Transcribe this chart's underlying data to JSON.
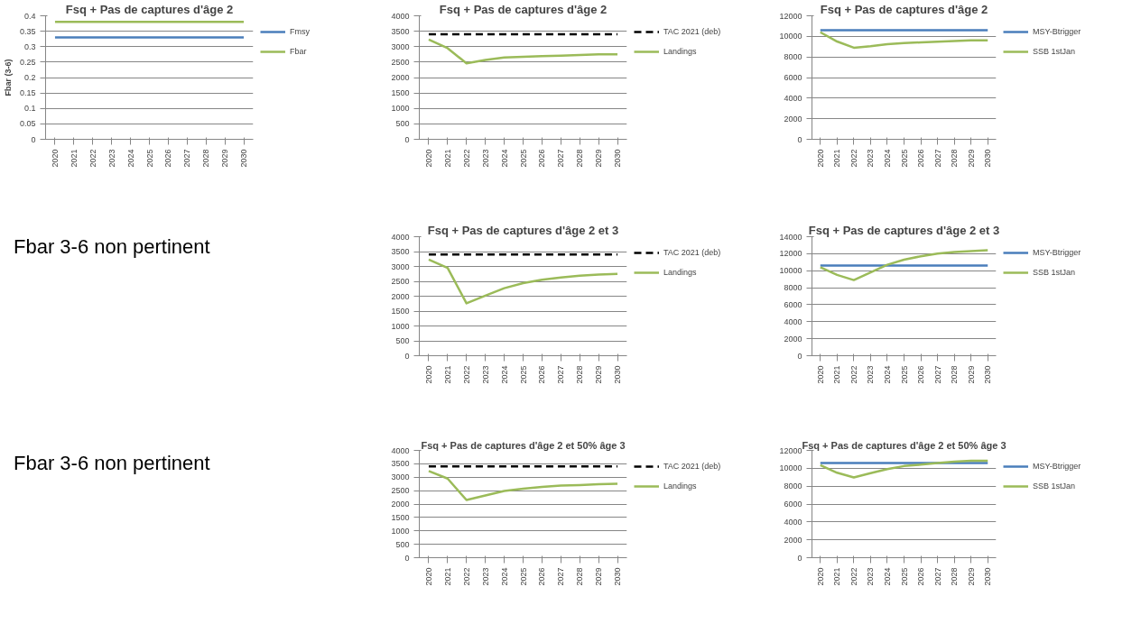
{
  "chart_data": [
    {
      "type": "line",
      "title": "Fsq + Pas de captures d'âge 2",
      "ylabel": "Fbar (3-6)",
      "categories": [
        "2020",
        "2021",
        "2022",
        "2023",
        "2024",
        "2025",
        "2026",
        "2027",
        "2028",
        "2029",
        "2030"
      ],
      "ylim": [
        0,
        0.4
      ],
      "yticks": [
        0,
        0.05,
        0.1,
        0.15,
        0.2,
        0.25,
        0.3,
        0.35,
        0.4
      ],
      "grid": "y",
      "legend": "right",
      "series": [
        {
          "name": "Fmsy",
          "color": "#4a7ebb",
          "values": [
            0.33,
            0.33,
            0.33,
            0.33,
            0.33,
            0.33,
            0.33,
            0.33,
            0.33,
            0.33,
            0.33
          ]
        },
        {
          "name": "Fbar",
          "color": "#9bbb59",
          "values": [
            0.38,
            0.38,
            0.38,
            0.38,
            0.38,
            0.38,
            0.38,
            0.38,
            0.38,
            0.38,
            0.38
          ]
        }
      ]
    },
    {
      "type": "line",
      "title": "Fsq + Pas de captures d'âge 2",
      "categories": [
        "2020",
        "2021",
        "2022",
        "2023",
        "2024",
        "2025",
        "2026",
        "2027",
        "2028",
        "2029",
        "2030"
      ],
      "ylim": [
        0,
        4000
      ],
      "yticks": [
        0,
        500,
        1000,
        1500,
        2000,
        2500,
        3000,
        3500,
        4000
      ],
      "grid": "y",
      "legend": "right",
      "series": [
        {
          "name": "TAC 2021 (deb)",
          "color": "#000000",
          "line_style": "dashed",
          "values": [
            3400,
            3400,
            3400,
            3400,
            3400,
            3400,
            3400,
            3400,
            3400,
            3400,
            3400
          ]
        },
        {
          "name": "Landings",
          "color": "#9bbb59",
          "values": [
            3230,
            2950,
            2460,
            2570,
            2650,
            2670,
            2690,
            2710,
            2730,
            2750,
            2750
          ]
        }
      ]
    },
    {
      "type": "line",
      "title": "Fsq + Pas de captures d'âge 2",
      "categories": [
        "2020",
        "2021",
        "2022",
        "2023",
        "2024",
        "2025",
        "2026",
        "2027",
        "2028",
        "2029",
        "2030"
      ],
      "ylim": [
        0,
        12000
      ],
      "yticks": [
        0,
        2000,
        4000,
        6000,
        8000,
        10000,
        12000
      ],
      "grid": "y",
      "legend": "right",
      "series": [
        {
          "name": "MSY-Btrigger",
          "color": "#4a7ebb",
          "values": [
            10600,
            10600,
            10600,
            10600,
            10600,
            10600,
            10600,
            10600,
            10600,
            10600,
            10600
          ]
        },
        {
          "name": "SSB 1stJan",
          "color": "#9bbb59",
          "values": [
            10400,
            9500,
            8900,
            9050,
            9250,
            9350,
            9420,
            9480,
            9550,
            9620,
            9620
          ]
        }
      ]
    },
    {
      "type": "other",
      "title": "Fbar 3-6 non pertinent"
    },
    {
      "type": "line",
      "title": "Fsq + Pas de captures d'âge 2 et 3",
      "categories": [
        "2020",
        "2021",
        "2022",
        "2023",
        "2024",
        "2025",
        "2026",
        "2027",
        "2028",
        "2029",
        "2030"
      ],
      "ylim": [
        0,
        4000
      ],
      "yticks": [
        0,
        500,
        1000,
        1500,
        2000,
        2500,
        3000,
        3500,
        4000
      ],
      "grid": "y",
      "legend": "right",
      "series": [
        {
          "name": "TAC 2021 (deb)",
          "color": "#000000",
          "line_style": "dashed",
          "values": [
            3400,
            3400,
            3400,
            3400,
            3400,
            3400,
            3400,
            3400,
            3400,
            3400,
            3400
          ]
        },
        {
          "name": "Landings",
          "color": "#9bbb59",
          "values": [
            3230,
            2950,
            1760,
            2020,
            2270,
            2440,
            2550,
            2630,
            2690,
            2730,
            2750
          ]
        }
      ]
    },
    {
      "type": "line",
      "title": "Fsq + Pas de captures d'âge 2 et 3",
      "categories": [
        "2020",
        "2021",
        "2022",
        "2023",
        "2024",
        "2025",
        "2026",
        "2027",
        "2028",
        "2029",
        "2030"
      ],
      "ylim": [
        0,
        14000
      ],
      "yticks": [
        0,
        2000,
        4000,
        6000,
        8000,
        10000,
        12000,
        14000
      ],
      "grid": "y",
      "legend": "right",
      "series": [
        {
          "name": "MSY-Btrigger",
          "color": "#4a7ebb",
          "values": [
            10600,
            10600,
            10600,
            10600,
            10600,
            10600,
            10600,
            10600,
            10600,
            10600,
            10600
          ]
        },
        {
          "name": "SSB 1stJan",
          "color": "#9bbb59",
          "values": [
            10400,
            9500,
            8900,
            9800,
            10700,
            11300,
            11700,
            12000,
            12200,
            12300,
            12400
          ]
        }
      ]
    },
    {
      "type": "other",
      "title": "Fbar 3-6 non pertinent"
    },
    {
      "type": "line",
      "title": "Fsq + Pas de captures d'âge 2 et 50% âge 3",
      "categories": [
        "2020",
        "2021",
        "2022",
        "2023",
        "2024",
        "2025",
        "2026",
        "2027",
        "2028",
        "2029",
        "2030"
      ],
      "ylim": [
        0,
        4000
      ],
      "yticks": [
        0,
        500,
        1000,
        1500,
        2000,
        2500,
        3000,
        3500,
        4000
      ],
      "grid": "y",
      "legend": "right",
      "series": [
        {
          "name": "TAC 2021 (deb)",
          "color": "#000000",
          "line_style": "dashed",
          "values": [
            3400,
            3400,
            3400,
            3400,
            3400,
            3400,
            3400,
            3400,
            3400,
            3400,
            3400
          ]
        },
        {
          "name": "Landings",
          "color": "#9bbb59",
          "values": [
            3230,
            2950,
            2150,
            2320,
            2490,
            2570,
            2640,
            2690,
            2710,
            2740,
            2760
          ]
        }
      ]
    },
    {
      "type": "line",
      "title": "Fsq + Pas de captures d'âge 2 et 50% âge 3",
      "categories": [
        "2020",
        "2021",
        "2022",
        "2023",
        "2024",
        "2025",
        "2026",
        "2027",
        "2028",
        "2029",
        "2030"
      ],
      "ylim": [
        0,
        12000
      ],
      "yticks": [
        0,
        2000,
        4000,
        6000,
        8000,
        10000,
        12000
      ],
      "grid": "y",
      "legend": "right",
      "series": [
        {
          "name": "MSY-Btrigger",
          "color": "#4a7ebb",
          "values": [
            10600,
            10600,
            10600,
            10600,
            10600,
            10600,
            10600,
            10600,
            10600,
            10600,
            10600
          ]
        },
        {
          "name": "SSB 1stJan",
          "color": "#9bbb59",
          "values": [
            10350,
            9500,
            8980,
            9450,
            9900,
            10250,
            10400,
            10600,
            10750,
            10850,
            10850
          ]
        }
      ]
    }
  ]
}
